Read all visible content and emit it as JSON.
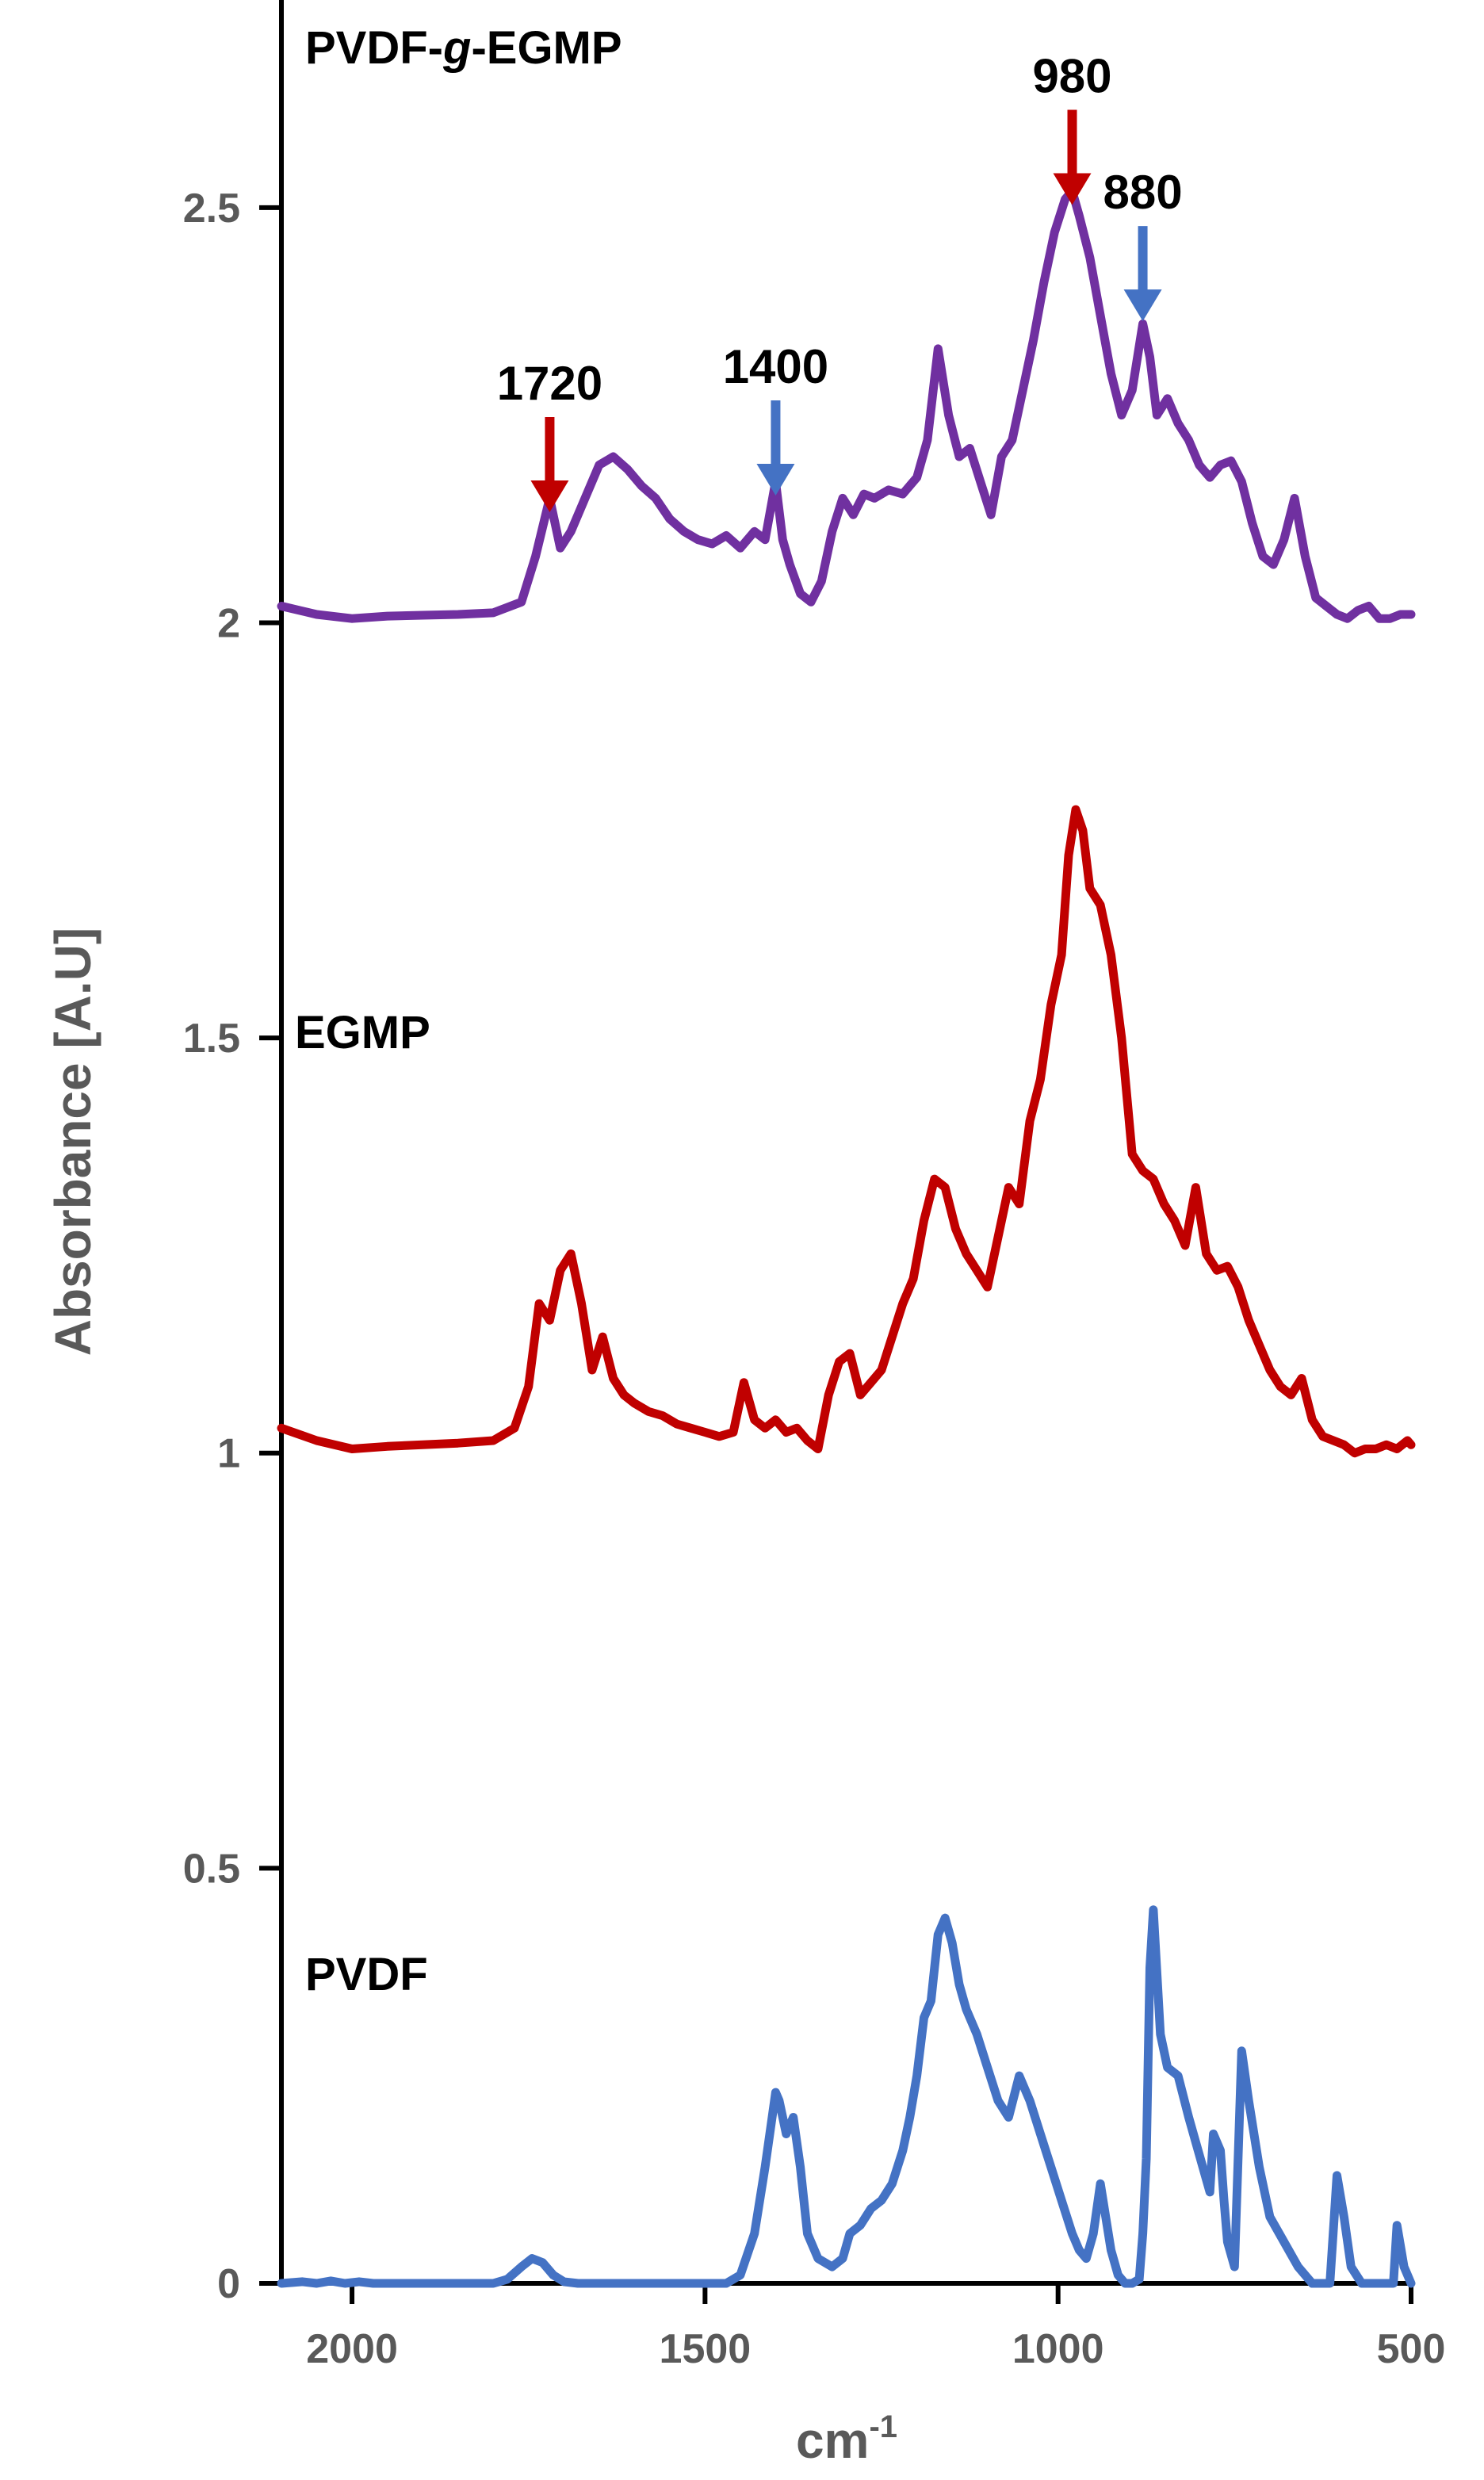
{
  "chart_data": {
    "type": "line",
    "title": "",
    "xlabel": "cm",
    "xlabel_sup": "-1",
    "ylabel": "Absorbance [A.U]",
    "xlim": [
      2100,
      500
    ],
    "xlim_note": "reversed",
    "ylim": [
      0,
      2.75
    ],
    "x_ticks": [
      2000,
      1500,
      1000,
      500
    ],
    "y_ticks": [
      0,
      0.5,
      1,
      1.5,
      2,
      2.5
    ],
    "y_tick_labels": [
      "0",
      "0.5",
      "1",
      "1.5",
      "2",
      "2.5"
    ],
    "grid": false,
    "series": [
      {
        "name": "PVDF-g-EGMP",
        "name_parts": [
          "PVDF-",
          "g",
          "-EGMP"
        ],
        "color": "#7030a0",
        "x": [
          2100,
          2050,
          2000,
          1950,
          1900,
          1850,
          1800,
          1760,
          1740,
          1720,
          1705,
          1690,
          1670,
          1650,
          1630,
          1610,
          1590,
          1570,
          1550,
          1530,
          1510,
          1490,
          1470,
          1450,
          1430,
          1415,
          1400,
          1390,
          1380,
          1365,
          1350,
          1335,
          1320,
          1305,
          1290,
          1275,
          1260,
          1240,
          1220,
          1200,
          1185,
          1170,
          1155,
          1140,
          1125,
          1110,
          1095,
          1080,
          1065,
          1050,
          1035,
          1020,
          1005,
          990,
          980,
          970,
          955,
          940,
          925,
          910,
          895,
          880,
          870,
          860,
          845,
          830,
          815,
          800,
          785,
          770,
          755,
          740,
          725,
          710,
          695,
          680,
          665,
          650,
          635,
          620,
          605,
          590,
          575,
          560,
          545,
          530,
          515,
          500
        ],
        "y": [
          2.02,
          2.01,
          2.005,
          2.008,
          2.009,
          2.01,
          2.012,
          2.025,
          2.08,
          2.15,
          2.09,
          2.11,
          2.15,
          2.19,
          2.2,
          2.185,
          2.165,
          2.15,
          2.125,
          2.11,
          2.1,
          2.095,
          2.105,
          2.09,
          2.11,
          2.1,
          2.17,
          2.1,
          2.07,
          2.035,
          2.025,
          2.05,
          2.11,
          2.15,
          2.13,
          2.155,
          2.15,
          2.16,
          2.155,
          2.175,
          2.22,
          2.33,
          2.25,
          2.2,
          2.21,
          2.17,
          2.13,
          2.2,
          2.22,
          2.28,
          2.34,
          2.41,
          2.47,
          2.51,
          2.52,
          2.49,
          2.44,
          2.37,
          2.3,
          2.25,
          2.28,
          2.36,
          2.32,
          2.25,
          2.27,
          2.24,
          2.22,
          2.19,
          2.175,
          2.19,
          2.195,
          2.17,
          2.12,
          2.08,
          2.07,
          2.1,
          2.15,
          2.08,
          2.03,
          2.02,
          2.01,
          2.005,
          2.015,
          2.02,
          2.005,
          2.005,
          2.01,
          2.01
        ]
      },
      {
        "name": "EGMP",
        "name_parts": [
          "EGMP"
        ],
        "color": "#c00000",
        "x": [
          2100,
          2050,
          2000,
          1950,
          1900,
          1850,
          1800,
          1770,
          1750,
          1735,
          1720,
          1705,
          1690,
          1675,
          1660,
          1645,
          1630,
          1615,
          1600,
          1580,
          1560,
          1540,
          1520,
          1500,
          1480,
          1460,
          1445,
          1430,
          1415,
          1400,
          1385,
          1370,
          1355,
          1340,
          1325,
          1310,
          1295,
          1280,
          1265,
          1250,
          1235,
          1220,
          1205,
          1190,
          1175,
          1160,
          1145,
          1130,
          1115,
          1100,
          1085,
          1070,
          1055,
          1040,
          1025,
          1010,
          995,
          985,
          975,
          965,
          955,
          940,
          925,
          910,
          895,
          880,
          865,
          850,
          835,
          820,
          805,
          790,
          775,
          760,
          745,
          730,
          715,
          700,
          685,
          670,
          655,
          640,
          625,
          610,
          595,
          580,
          565,
          550,
          535,
          520,
          505,
          500
        ],
        "y": [
          1.03,
          1.015,
          1.005,
          1.008,
          1.01,
          1.012,
          1.015,
          1.03,
          1.08,
          1.18,
          1.16,
          1.22,
          1.24,
          1.18,
          1.1,
          1.14,
          1.09,
          1.07,
          1.06,
          1.05,
          1.045,
          1.035,
          1.03,
          1.025,
          1.02,
          1.025,
          1.085,
          1.04,
          1.03,
          1.04,
          1.025,
          1.03,
          1.015,
          1.005,
          1.07,
          1.11,
          1.12,
          1.07,
          1.085,
          1.1,
          1.14,
          1.18,
          1.21,
          1.28,
          1.33,
          1.32,
          1.27,
          1.24,
          1.22,
          1.2,
          1.26,
          1.32,
          1.3,
          1.4,
          1.45,
          1.54,
          1.6,
          1.72,
          1.775,
          1.75,
          1.68,
          1.66,
          1.6,
          1.5,
          1.36,
          1.34,
          1.33,
          1.3,
          1.28,
          1.25,
          1.32,
          1.24,
          1.22,
          1.225,
          1.2,
          1.16,
          1.13,
          1.1,
          1.08,
          1.07,
          1.09,
          1.04,
          1.02,
          1.015,
          1.01,
          1.0,
          1.005,
          1.005,
          1.01,
          1.005,
          1.015,
          1.01
        ]
      },
      {
        "name": "PVDF",
        "name_parts": [
          "PVDF"
        ],
        "color": "#4472c4",
        "x": [
          2100,
          2070,
          2050,
          2030,
          2010,
          1990,
          1970,
          1950,
          1900,
          1850,
          1800,
          1780,
          1760,
          1745,
          1730,
          1715,
          1700,
          1680,
          1650,
          1600,
          1550,
          1500,
          1470,
          1450,
          1430,
          1415,
          1405,
          1400,
          1395,
          1385,
          1375,
          1365,
          1355,
          1340,
          1320,
          1305,
          1295,
          1280,
          1265,
          1250,
          1235,
          1220,
          1210,
          1200,
          1190,
          1180,
          1170,
          1160,
          1150,
          1140,
          1130,
          1115,
          1100,
          1085,
          1070,
          1055,
          1040,
          1025,
          1010,
          995,
          980,
          970,
          960,
          950,
          940,
          925,
          915,
          905,
          895,
          885,
          880,
          875,
          870,
          865,
          855,
          845,
          830,
          815,
          805,
          795,
          785,
          780,
          770,
          765,
          760,
          750,
          740,
          730,
          715,
          700,
          680,
          660,
          640,
          625,
          615,
          605,
          595,
          585,
          570,
          555,
          540,
          530,
          525,
          520,
          510,
          500
        ],
        "y": [
          0.0,
          0.002,
          0.0,
          0.003,
          0.0,
          0.002,
          0.0,
          0.0,
          0.0,
          0.0,
          0.0,
          0.005,
          0.02,
          0.03,
          0.025,
          0.01,
          0.002,
          0.0,
          0.0,
          0.0,
          0.0,
          0.0,
          0.0,
          0.01,
          0.06,
          0.14,
          0.2,
          0.23,
          0.22,
          0.18,
          0.2,
          0.14,
          0.06,
          0.03,
          0.02,
          0.03,
          0.06,
          0.07,
          0.09,
          0.1,
          0.12,
          0.16,
          0.2,
          0.25,
          0.32,
          0.34,
          0.42,
          0.44,
          0.41,
          0.36,
          0.33,
          0.3,
          0.26,
          0.22,
          0.2,
          0.25,
          0.22,
          0.18,
          0.14,
          0.1,
          0.06,
          0.04,
          0.03,
          0.06,
          0.12,
          0.04,
          0.01,
          0.0,
          0.0,
          0.005,
          0.06,
          0.15,
          0.38,
          0.45,
          0.3,
          0.26,
          0.25,
          0.2,
          0.17,
          0.14,
          0.11,
          0.18,
          0.16,
          0.1,
          0.05,
          0.02,
          0.28,
          0.22,
          0.14,
          0.08,
          0.05,
          0.02,
          0.0,
          0.0,
          0.0,
          0.13,
          0.08,
          0.02,
          0.0,
          0.0,
          0.0,
          0.0,
          0.0,
          0.07,
          0.02,
          0.0
        ]
      }
    ],
    "annotations": [
      {
        "text": "1720",
        "x": 1720,
        "y": 2.2,
        "arrow_color": "#c00000"
      },
      {
        "text": "1400",
        "x": 1400,
        "y": 2.22,
        "arrow_color": "#4472c4"
      },
      {
        "text": "980",
        "x": 980,
        "y": 2.57,
        "arrow_color": "#c00000"
      },
      {
        "text": "880",
        "x": 880,
        "y": 2.43,
        "arrow_color": "#4472c4"
      }
    ]
  }
}
